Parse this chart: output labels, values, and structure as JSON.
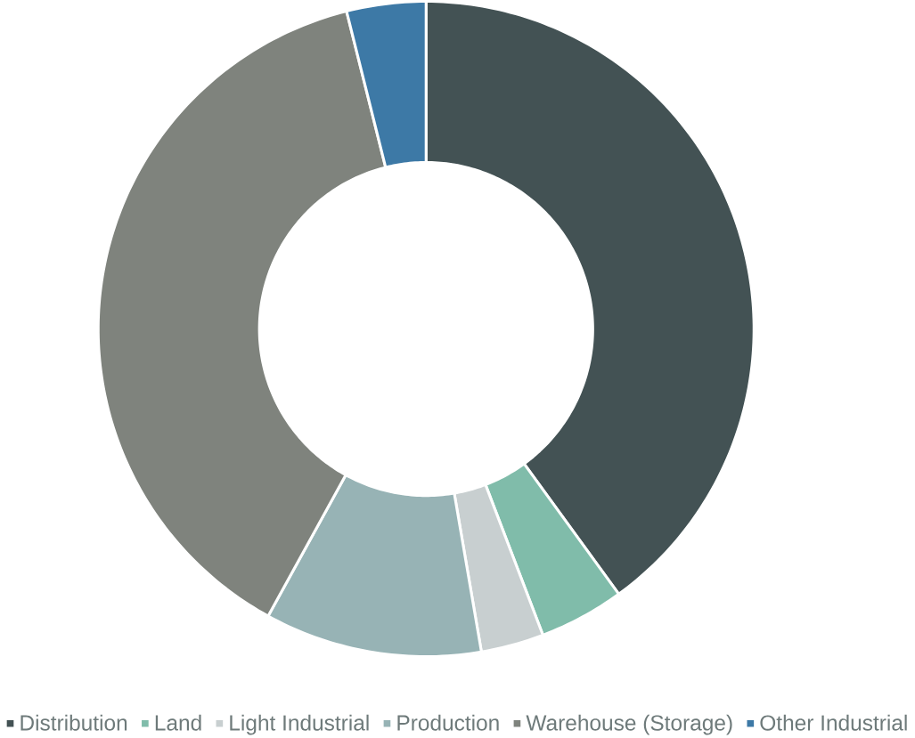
{
  "chart_data": {
    "type": "donut",
    "categories": [
      "Distribution",
      "Land",
      "Light Industrial",
      "Production",
      "Warehouse (Storage)",
      "Other Industrial"
    ],
    "values": [
      40,
      4.2,
      3.1,
      10.7,
      38.1,
      3.9
    ],
    "colors": [
      "#435254",
      "#80bcaa",
      "#c8cfd0",
      "#97b3b5",
      "#7f837d",
      "#3d79a6"
    ],
    "legend": "bottom"
  }
}
